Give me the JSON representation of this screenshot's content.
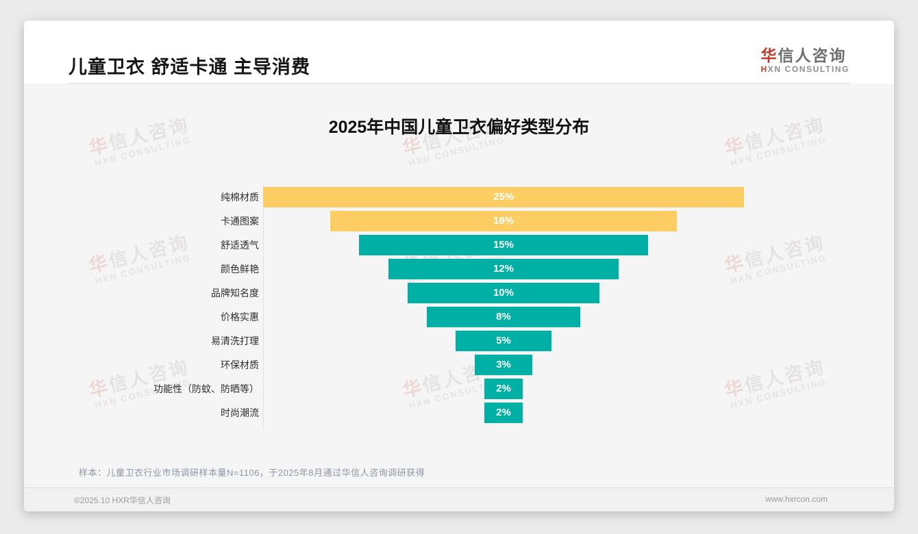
{
  "header": {
    "title": "儿童卫衣 舒适卡通 主导消费"
  },
  "brand": {
    "logo_cn_accent": "华",
    "logo_cn_rest": "信人咨询",
    "logo_en_accent": "H",
    "logo_en_rest": "XN CONSULTING",
    "watermark_cn_accent": "华",
    "watermark_cn_rest": "信人咨询",
    "watermark_en": "HXN CONSULTING"
  },
  "colors": {
    "accent_red": "#c0392b",
    "highlight_yellow": "#fbcd63",
    "primary_teal": "#00b0a4"
  },
  "chart_data": {
    "type": "bar",
    "variant": "centered-funnel",
    "title": "2025年中国儿童卫衣偏好类型分布",
    "categories": [
      "纯棉材质",
      "卡通图案",
      "舒适透气",
      "颜色鲜艳",
      "品牌知名度",
      "价格实惠",
      "易清洗打理",
      "环保材质",
      "功能性（防蚊、防晒等）",
      "时尚潮流"
    ],
    "values": [
      25,
      18,
      15,
      12,
      10,
      8,
      5,
      3,
      2,
      2
    ],
    "unit": "%",
    "bar_colors": [
      "#fbcd63",
      "#fbcd63",
      "#00b0a4",
      "#00b0a4",
      "#00b0a4",
      "#00b0a4",
      "#00b0a4",
      "#00b0a4",
      "#00b0a4",
      "#00b0a4"
    ],
    "xlabel": "",
    "ylabel": "",
    "value_labels_shown": true,
    "legend": "none",
    "grid": "off",
    "xlim_percent": [
      0,
      25
    ]
  },
  "footnote": {
    "text": "样本：儿童卫衣行业市场调研样本量N=1106，于2025年8月通过华信人咨询调研获得"
  },
  "footer": {
    "copyright": "©2025.10 HXR华信人咨询",
    "website": "www.hxrcon.com"
  }
}
